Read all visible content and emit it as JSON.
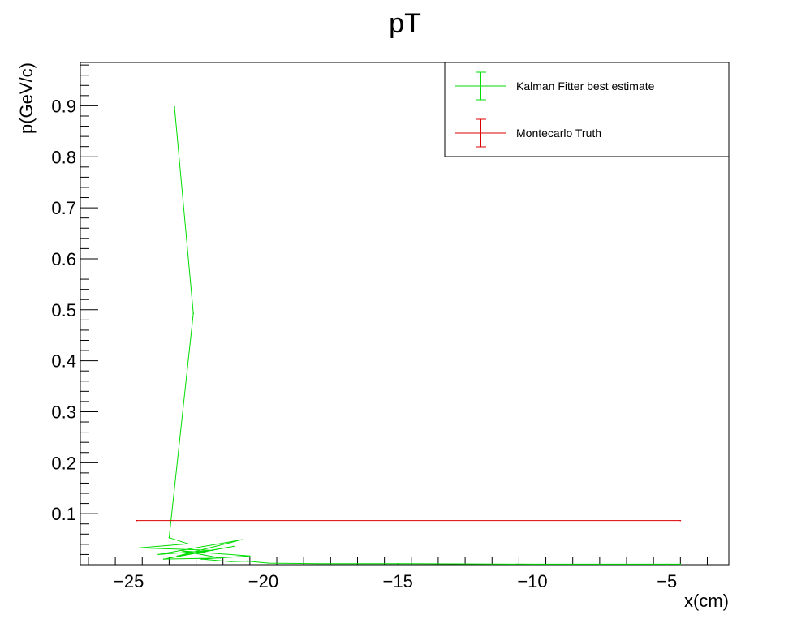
{
  "chart_data": {
    "type": "line",
    "title": "pT",
    "xlabel": "x(cm)",
    "ylabel": "p(GeV/c)",
    "xlim": [
      -26.8,
      -2.7
    ],
    "ylim": [
      0.0,
      0.985
    ],
    "x_ticks": [
      -25,
      -20,
      -15,
      -10,
      -5
    ],
    "x_tick_labels": [
      "−25",
      "−20",
      "−15",
      "−10",
      "−5"
    ],
    "y_ticks": [
      0.1,
      0.2,
      0.3,
      0.4,
      0.5,
      0.6,
      0.7,
      0.8,
      0.9
    ],
    "y_tick_labels": [
      "0.1",
      "0.2",
      "0.3",
      "0.4",
      "0.5",
      "0.6",
      "0.7",
      "0.8",
      "0.9"
    ],
    "grid": false,
    "legend": "top-right",
    "series": [
      {
        "name": "Kalman Fitter best estimate",
        "color": "#00dd00",
        "x": [
          -23.3,
          -22.6,
          -23.5,
          -22.8,
          -24.6,
          -21.9,
          -23.9,
          -20.8,
          -23.2,
          -21.1,
          -23.7,
          -21.6,
          -23.0,
          -20.5,
          -22.3,
          -21.2,
          -20.6,
          -19.8,
          -18.0,
          -15.0,
          -10.0,
          -5.0,
          -4.5
        ],
        "y": [
          0.898,
          0.493,
          0.053,
          0.041,
          0.033,
          0.028,
          0.02,
          0.049,
          0.017,
          0.036,
          0.011,
          0.013,
          0.027,
          0.017,
          0.011,
          0.006,
          0.007,
          0.003,
          0.002,
          0.002,
          0.001,
          0.001,
          0.001
        ]
      },
      {
        "name": "Montecarlo Truth",
        "color": "#dd0000",
        "x": [
          -24.7,
          -4.5
        ],
        "y": [
          0.0865,
          0.0865
        ]
      }
    ]
  }
}
